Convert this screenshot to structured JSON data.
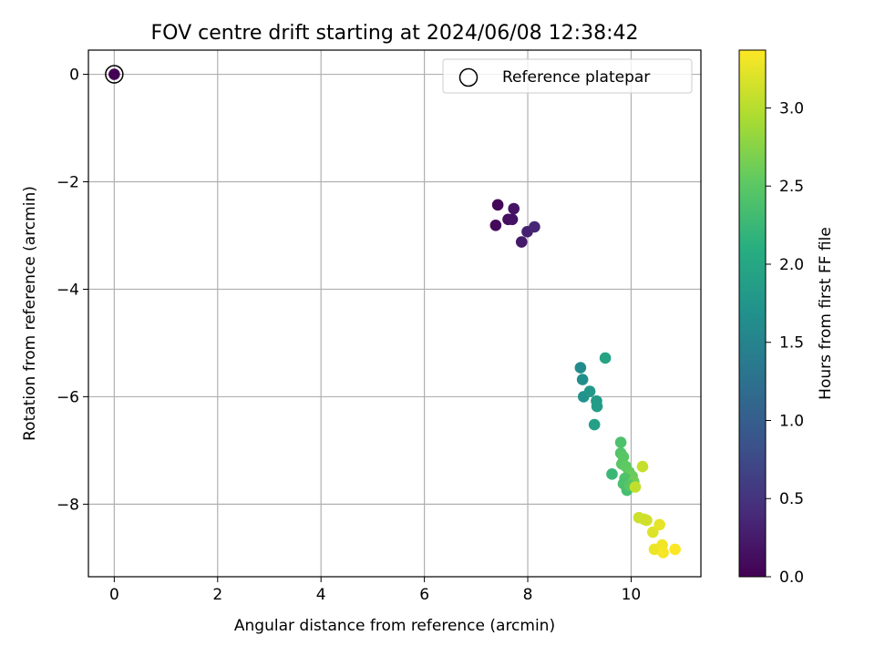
{
  "chart_data": {
    "type": "scatter",
    "title": "FOV centre drift starting at 2024/06/08 12:38:42",
    "xlabel": "Angular distance from reference (arcmin)",
    "ylabel": "Rotation from reference (arcmin)",
    "xlim": [
      -0.5,
      11.35
    ],
    "ylim": [
      -9.35,
      0.45
    ],
    "xticks": [
      0,
      2,
      4,
      6,
      8,
      10
    ],
    "yticks": [
      0,
      -2,
      -4,
      -6,
      -8
    ],
    "grid": true,
    "legend": {
      "placement": "top-right",
      "entries": [
        "Reference platepar"
      ]
    },
    "colorbar": {
      "label": "Hours from first FF file",
      "range": [
        0.0,
        3.37
      ],
      "ticks": [
        "0.0",
        "0.5",
        "1.0",
        "1.5",
        "2.0",
        "2.5",
        "3.0"
      ],
      "colormap": "viridis"
    },
    "reference_point": {
      "x": 0,
      "y": 0,
      "hours": 0.0
    },
    "points": [
      {
        "x": 0.0,
        "y": 0.0,
        "c": 0.0
      },
      {
        "x": 7.42,
        "y": -2.43,
        "c": 0.05
      },
      {
        "x": 7.38,
        "y": -2.81,
        "c": 0.08
      },
      {
        "x": 7.62,
        "y": -2.7,
        "c": 0.12
      },
      {
        "x": 7.7,
        "y": -2.7,
        "c": 0.15
      },
      {
        "x": 7.73,
        "y": -2.5,
        "c": 0.18
      },
      {
        "x": 7.88,
        "y": -3.12,
        "c": 0.24
      },
      {
        "x": 7.99,
        "y": -2.93,
        "c": 0.3
      },
      {
        "x": 8.13,
        "y": -2.84,
        "c": 0.35
      },
      {
        "x": 9.02,
        "y": -5.46,
        "c": 1.6
      },
      {
        "x": 9.06,
        "y": -5.68,
        "c": 1.65
      },
      {
        "x": 9.08,
        "y": -6.0,
        "c": 1.7
      },
      {
        "x": 9.2,
        "y": -5.9,
        "c": 1.78
      },
      {
        "x": 9.33,
        "y": -6.08,
        "c": 1.82
      },
      {
        "x": 9.34,
        "y": -6.18,
        "c": 1.85
      },
      {
        "x": 9.29,
        "y": -6.52,
        "c": 1.9
      },
      {
        "x": 9.5,
        "y": -5.28,
        "c": 1.95
      },
      {
        "x": 9.63,
        "y": -7.44,
        "c": 2.25
      },
      {
        "x": 9.8,
        "y": -6.85,
        "c": 2.4
      },
      {
        "x": 9.8,
        "y": -7.05,
        "c": 2.45
      },
      {
        "x": 9.85,
        "y": -7.12,
        "c": 2.48
      },
      {
        "x": 9.82,
        "y": -7.25,
        "c": 2.5
      },
      {
        "x": 9.9,
        "y": -7.3,
        "c": 2.52
      },
      {
        "x": 9.96,
        "y": -7.4,
        "c": 2.55
      },
      {
        "x": 10.02,
        "y": -7.48,
        "c": 2.58
      },
      {
        "x": 9.88,
        "y": -7.52,
        "c": 2.42
      },
      {
        "x": 9.85,
        "y": -7.62,
        "c": 2.38
      },
      {
        "x": 9.92,
        "y": -7.74,
        "c": 2.35
      },
      {
        "x": 10.05,
        "y": -7.58,
        "c": 2.62
      },
      {
        "x": 9.97,
        "y": -7.65,
        "c": 2.47
      },
      {
        "x": 10.08,
        "y": -7.68,
        "c": 3.05
      },
      {
        "x": 10.22,
        "y": -7.3,
        "c": 3.08
      },
      {
        "x": 10.15,
        "y": -8.25,
        "c": 3.1
      },
      {
        "x": 10.3,
        "y": -8.3,
        "c": 3.15
      },
      {
        "x": 10.25,
        "y": -8.28,
        "c": 3.12
      },
      {
        "x": 10.42,
        "y": -8.52,
        "c": 3.2
      },
      {
        "x": 10.55,
        "y": -8.38,
        "c": 3.25
      },
      {
        "x": 10.45,
        "y": -8.84,
        "c": 3.28
      },
      {
        "x": 10.6,
        "y": -8.76,
        "c": 3.3
      },
      {
        "x": 10.62,
        "y": -8.9,
        "c": 3.33
      },
      {
        "x": 10.85,
        "y": -8.84,
        "c": 3.36
      }
    ]
  }
}
